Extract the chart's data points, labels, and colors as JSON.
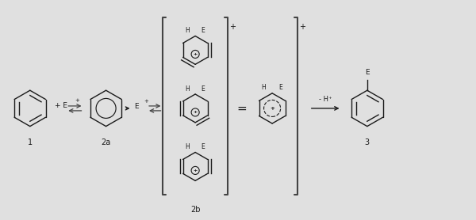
{
  "bg_color": "#e0e0e0",
  "fig_width": 6.0,
  "fig_height": 2.78,
  "dpi": 100,
  "text_color": "#1a1a1a",
  "label_1": "1",
  "label_2a": "2a",
  "label_2b": "2b",
  "label_3": "3",
  "minus_H": "- H⁺",
  "H_label": "H",
  "E_label": "E",
  "circle_plus": "⊕",
  "lw": 1.0,
  "r_benz": 0.38,
  "r_small": 0.3,
  "r_hybrid": 0.32
}
